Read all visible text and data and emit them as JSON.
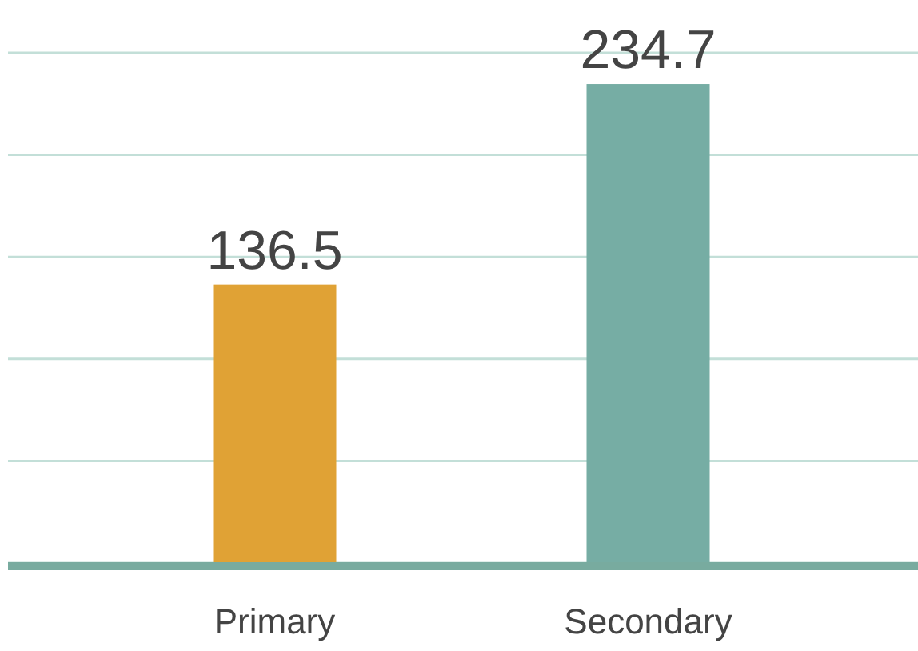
{
  "chart_data": {
    "type": "bar",
    "categories": [
      "Primary",
      "Secondary"
    ],
    "values": [
      136.5,
      234.7
    ],
    "colors": [
      "#e0a235",
      "#76ada4"
    ],
    "ylim": [
      0,
      250
    ],
    "yticks": [
      {
        "value": 0,
        "label": null
      },
      {
        "value": 50,
        "label": null
      },
      {
        "value": 100,
        "label": null
      },
      {
        "value": 150,
        "label": null
      },
      {
        "value": 200,
        "label": null
      },
      {
        "value": 250,
        "label": null
      }
    ],
    "grid": "y",
    "data_labels": true
  }
}
